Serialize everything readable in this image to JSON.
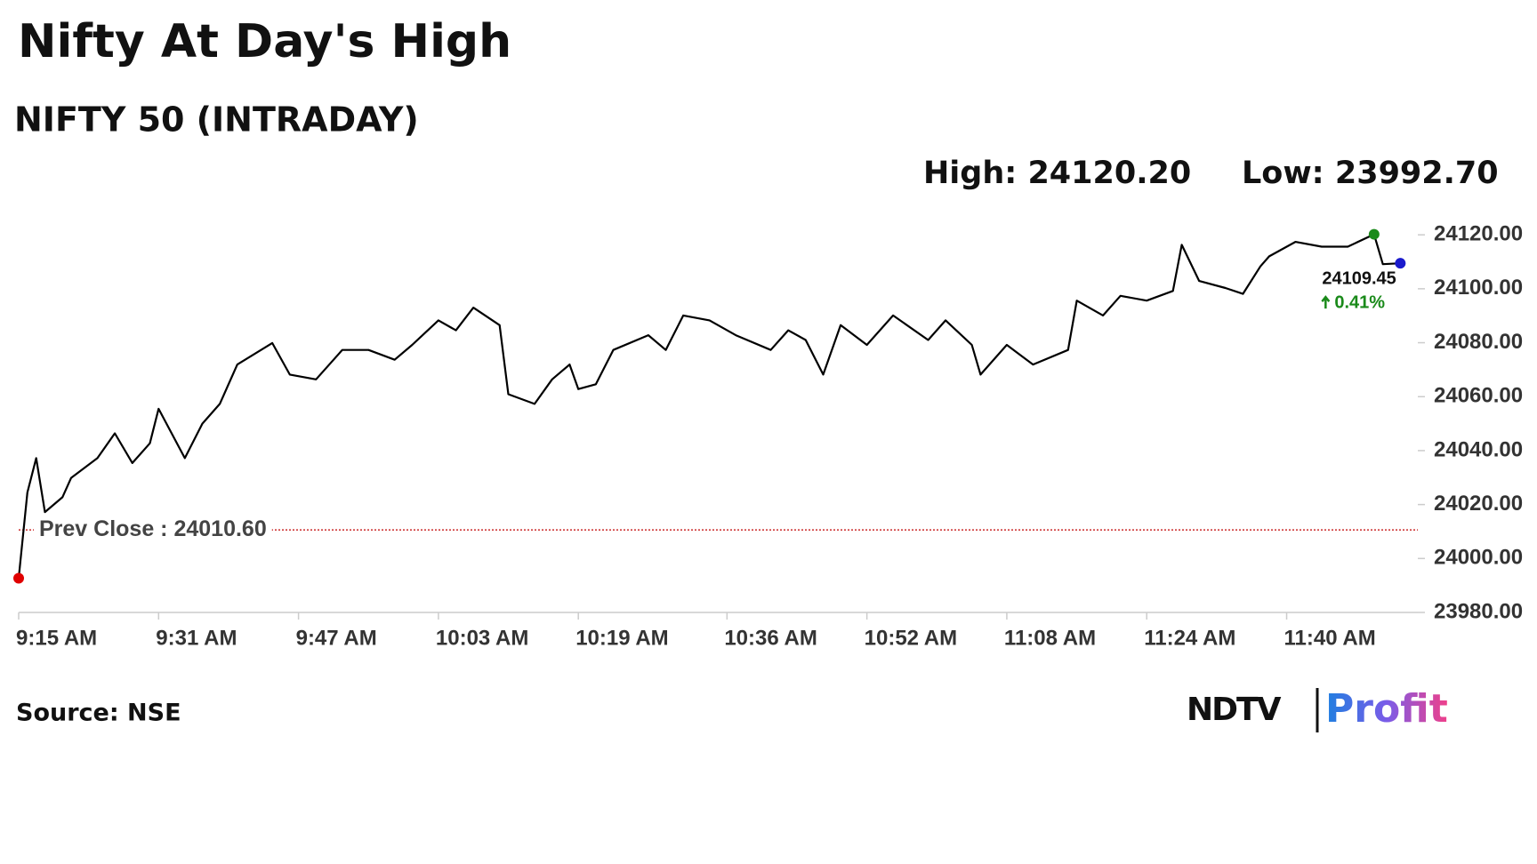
{
  "chart_data": {
    "type": "line",
    "title": "Nifty At Day's High",
    "subtitle": "NIFTY 50 (INTRADAY)",
    "high_text": "High: 24120.20",
    "low_text": "Low: 23992.70",
    "prev_close": 24010.6,
    "prev_close_text": "Prev Close : 24010.60",
    "last_text": "24109.45",
    "change_text": "0.41%",
    "source": "Source: NSE",
    "logo": [
      "NDTV",
      "Profit"
    ],
    "color": "#000000",
    "prev_close_color": "#c00000",
    "low_color": "#e00000",
    "high_color": "#1a8a1a",
    "last_color": "#1a1acc",
    "change_color": "#1a8a1a",
    "x": [
      "9:15 AM",
      "9:16 AM",
      "9:17 AM",
      "9:18 AM",
      "9:20 AM",
      "9:21 AM",
      "9:24 AM",
      "9:26 AM",
      "9:28 AM",
      "9:30 AM",
      "9:31 AM",
      "9:34 AM",
      "9:36 AM",
      "9:38 AM",
      "9:40 AM",
      "9:44 AM",
      "9:46 AM",
      "9:49 AM",
      "9:52 AM",
      "9:55 AM",
      "9:58 AM",
      "10:00 AM",
      "10:03 AM",
      "10:05 AM",
      "10:07 AM",
      "10:10 AM",
      "10:11 AM",
      "10:14 AM",
      "10:16 AM",
      "10:18 AM",
      "10:19 AM",
      "10:21 AM",
      "10:23 AM",
      "10:27 AM",
      "10:29 AM",
      "10:31 AM",
      "10:34 AM",
      "10:37 AM",
      "10:41 AM",
      "10:43 AM",
      "10:45 AM",
      "10:47 AM",
      "10:49 AM",
      "10:52 AM",
      "10:55 AM",
      "10:59 AM",
      "11:01 AM",
      "11:04 AM",
      "11:05 AM",
      "11:08 AM",
      "11:11 AM",
      "11:15 AM",
      "11:16 AM",
      "11:19 AM",
      "11:21 AM",
      "11:24 AM",
      "11:27 AM",
      "11:28 AM",
      "11:30 AM",
      "11:33 AM",
      "11:35 AM",
      "11:37 AM",
      "11:38 AM",
      "11:41 AM",
      "11:44 AM",
      "11:47 AM",
      "11:50 AM",
      "11:51 AM",
      "11:53 AM"
    ],
    "values": [
      23992.7,
      24024.5,
      24037.2,
      24017.2,
      24022.7,
      24029.9,
      24037.2,
      24046.4,
      24035.4,
      24042.7,
      24055.5,
      24037.2,
      24050.0,
      24057.3,
      24071.9,
      24079.9,
      24068.2,
      24066.4,
      24077.3,
      24077.3,
      24073.7,
      24079.2,
      24088.3,
      24084.6,
      24093.0,
      24086.5,
      24060.9,
      24057.3,
      24066.4,
      24071.9,
      24062.8,
      24064.6,
      24077.3,
      24082.8,
      24077.3,
      24090.1,
      24088.3,
      24082.8,
      24077.3,
      24084.6,
      24081.0,
      24068.2,
      24086.5,
      24079.2,
      24090.1,
      24081.0,
      24088.3,
      24079.2,
      24068.2,
      24079.2,
      24071.9,
      24077.3,
      24095.6,
      24090.1,
      24097.4,
      24095.6,
      24099.2,
      24116.3,
      24102.9,
      24100.3,
      24098.1,
      24108.3,
      24112.0,
      24117.4,
      24115.6,
      24115.6,
      24120.2,
      24109.1,
      24109.45
    ],
    "xlim": [
      "9:15 AM",
      "11:55 AM"
    ],
    "xticks": [
      "9:15 AM",
      "9:31 AM",
      "9:47 AM",
      "10:03 AM",
      "10:19 AM",
      "10:36 AM",
      "10:52 AM",
      "11:08 AM",
      "11:24 AM",
      "11:40 AM"
    ],
    "ylim": [
      23980,
      24125
    ],
    "yticks": [
      {
        "value": 23980,
        "label": "23980.00"
      },
      {
        "value": 24000,
        "label": "24000.00"
      },
      {
        "value": 24020,
        "label": "24020.00"
      },
      {
        "value": 24040,
        "label": "24040.00"
      },
      {
        "value": 24060,
        "label": "24060.00"
      },
      {
        "value": 24080,
        "label": "24080.00"
      },
      {
        "value": 24100,
        "label": "24100.00"
      },
      {
        "value": 24120,
        "label": "24120.00"
      }
    ],
    "grid": false
  }
}
